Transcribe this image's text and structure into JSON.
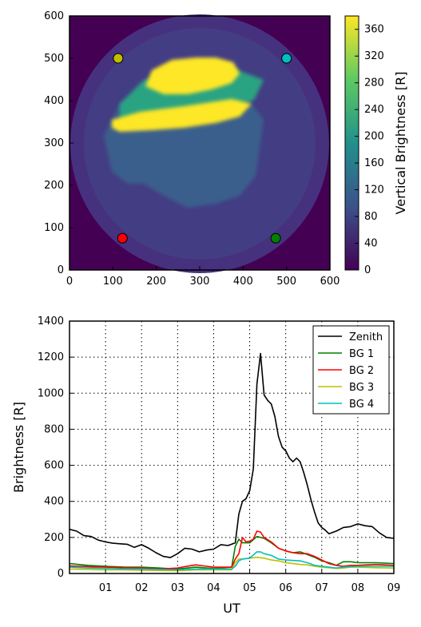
{
  "chart_data": [
    {
      "type": "heatmap",
      "xlim": [
        0,
        600
      ],
      "ylim": [
        0,
        600
      ],
      "xticks": [
        "0",
        "100",
        "200",
        "300",
        "400",
        "500",
        "600"
      ],
      "yticks": [
        "0",
        "100",
        "200",
        "300",
        "400",
        "500",
        "600"
      ],
      "colorbar": {
        "label": "Vertical Brightness [R]",
        "range": [
          0,
          380
        ],
        "ticks": [
          "0",
          "40",
          "80",
          "120",
          "160",
          "200",
          "240",
          "280",
          "320",
          "360"
        ],
        "colors": [
          "#440154",
          "#3b528b",
          "#21918c",
          "#5ec962",
          "#fde725"
        ]
      },
      "markers": [
        {
          "name": "BG 1",
          "x": 475,
          "y": 75,
          "color": "#008000"
        },
        {
          "name": "BG 2",
          "x": 122,
          "y": 75,
          "color": "#ff0000"
        },
        {
          "name": "BG 3",
          "x": 112,
          "y": 500,
          "color": "#bfbf00"
        },
        {
          "name": "BG 4",
          "x": 500,
          "y": 500,
          "color": "#00bfbf"
        }
      ]
    },
    {
      "type": "line",
      "xlabel": "UT",
      "ylabel": "Brightness [R]",
      "xlim": [
        0,
        9
      ],
      "ylim": [
        0,
        1400
      ],
      "xticks": [
        "01",
        "02",
        "03",
        "04",
        "05",
        "06",
        "07",
        "08",
        "09"
      ],
      "yticks": [
        "0",
        "200",
        "400",
        "600",
        "800",
        "1000",
        "1200",
        "1400"
      ],
      "grid": true,
      "legend_position": "top-right",
      "series": [
        {
          "name": "Zenith",
          "color": "#000000",
          "x": [
            0.0,
            0.2,
            0.4,
            0.6,
            0.8,
            1.0,
            1.2,
            1.4,
            1.6,
            1.8,
            2.0,
            2.2,
            2.4,
            2.6,
            2.8,
            3.0,
            3.2,
            3.4,
            3.6,
            3.8,
            4.0,
            4.2,
            4.4,
            4.6,
            4.7,
            4.8,
            4.9,
            5.0,
            5.1,
            5.2,
            5.3,
            5.4,
            5.5,
            5.6,
            5.7,
            5.8,
            5.9,
            6.0,
            6.1,
            6.2,
            6.3,
            6.4,
            6.5,
            6.6,
            6.7,
            6.8,
            6.9,
            7.0,
            7.1,
            7.2,
            7.4,
            7.6,
            7.8,
            8.0,
            8.2,
            8.4,
            8.6,
            8.8,
            9.0
          ],
          "values": [
            245,
            235,
            210,
            205,
            185,
            175,
            168,
            165,
            162,
            145,
            160,
            140,
            115,
            95,
            88,
            110,
            140,
            135,
            120,
            130,
            135,
            160,
            155,
            170,
            330,
            400,
            415,
            460,
            580,
            1050,
            1220,
            990,
            960,
            940,
            870,
            760,
            700,
            680,
            640,
            620,
            640,
            620,
            560,
            490,
            410,
            340,
            280,
            255,
            240,
            220,
            235,
            255,
            260,
            275,
            265,
            260,
            225,
            200,
            195
          ]
        },
        {
          "name": "BG 1",
          "color": "#008000",
          "x": [
            0.0,
            0.5,
            1.0,
            1.5,
            2.0,
            2.5,
            3.0,
            3.5,
            4.0,
            4.5,
            4.6,
            4.7,
            4.8,
            5.0,
            5.2,
            5.4,
            5.6,
            5.8,
            6.0,
            6.2,
            6.4,
            6.6,
            6.8,
            7.0,
            7.2,
            7.4,
            7.6,
            7.8,
            8.0,
            8.5,
            9.0
          ],
          "values": [
            55,
            45,
            40,
            36,
            35,
            30,
            25,
            35,
            28,
            35,
            150,
            190,
            170,
            170,
            205,
            195,
            170,
            140,
            125,
            115,
            120,
            105,
            90,
            70,
            60,
            45,
            65,
            65,
            60,
            60,
            55
          ]
        },
        {
          "name": "BG 2",
          "color": "#ff0000",
          "x": [
            0.0,
            0.5,
            1.0,
            1.5,
            2.0,
            2.5,
            3.0,
            3.2,
            3.5,
            4.0,
            4.5,
            4.6,
            4.7,
            4.8,
            4.9,
            5.0,
            5.1,
            5.2,
            5.3,
            5.4,
            5.6,
            5.8,
            6.0,
            6.2,
            6.4,
            6.6,
            6.8,
            7.0,
            7.2,
            7.4,
            7.6,
            7.8,
            8.0,
            8.5,
            9.0
          ],
          "values": [
            42,
            38,
            35,
            32,
            30,
            25,
            30,
            38,
            48,
            35,
            35,
            80,
            110,
            200,
            175,
            180,
            190,
            235,
            230,
            200,
            175,
            140,
            125,
            115,
            110,
            110,
            95,
            75,
            55,
            45,
            40,
            45,
            45,
            50,
            45
          ]
        },
        {
          "name": "BG 3",
          "color": "#bfbf00",
          "x": [
            0.0,
            0.5,
            1.0,
            1.5,
            2.0,
            2.5,
            3.0,
            3.5,
            4.0,
            4.5,
            4.6,
            4.7,
            4.8,
            5.0,
            5.2,
            5.4,
            5.6,
            5.8,
            6.0,
            6.2,
            6.4,
            6.6,
            6.8,
            7.0,
            7.2,
            7.4,
            7.6,
            7.8,
            8.0,
            8.5,
            9.0
          ],
          "values": [
            25,
            22,
            20,
            20,
            18,
            17,
            15,
            20,
            20,
            20,
            60,
            80,
            80,
            85,
            90,
            85,
            75,
            70,
            60,
            55,
            50,
            48,
            40,
            35,
            32,
            28,
            30,
            35,
            35,
            32,
            30
          ]
        },
        {
          "name": "BG 4",
          "color": "#00bfbf",
          "x": [
            0.0,
            0.5,
            1.0,
            1.5,
            2.0,
            2.5,
            3.0,
            3.5,
            4.0,
            4.5,
            4.6,
            4.7,
            4.8,
            5.0,
            5.2,
            5.3,
            5.4,
            5.6,
            5.8,
            6.0,
            6.2,
            6.4,
            6.6,
            6.8,
            7.0,
            7.2,
            7.4,
            7.6,
            7.8,
            8.0,
            8.5,
            9.0
          ],
          "values": [
            35,
            30,
            28,
            25,
            25,
            22,
            20,
            25,
            25,
            25,
            40,
            70,
            80,
            85,
            120,
            120,
            110,
            100,
            80,
            75,
            72,
            70,
            60,
            45,
            40,
            35,
            30,
            35,
            38,
            40,
            40,
            40
          ]
        }
      ]
    }
  ]
}
